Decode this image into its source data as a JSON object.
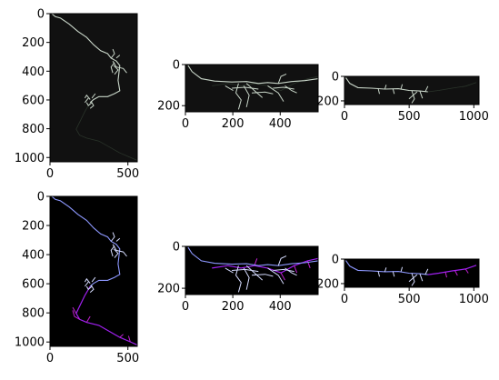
{
  "figure": {
    "background": "#ffffff",
    "panels": [
      {
        "id": "top-left",
        "image_background": "#111111",
        "trace_style": "gray",
        "x_ticks": [
          "0",
          "500"
        ],
        "y_ticks": [
          "0",
          "200",
          "400",
          "600",
          "800",
          "1000"
        ],
        "x_range": [
          0,
          560
        ],
        "y_range": [
          1030,
          0
        ]
      },
      {
        "id": "top-middle",
        "image_background": "#111111",
        "trace_style": "gray",
        "x_ticks": [
          "0",
          "200",
          "400"
        ],
        "y_ticks": [
          "0",
          "200"
        ],
        "x_range": [
          0,
          560
        ],
        "y_range": [
          230,
          0
        ]
      },
      {
        "id": "top-right",
        "image_background": "#111111",
        "trace_style": "gray",
        "x_ticks": [
          "0",
          "500",
          "1000"
        ],
        "y_ticks": [
          "0",
          "200"
        ],
        "x_range": [
          0,
          1040
        ],
        "y_range": [
          230,
          0
        ]
      },
      {
        "id": "bottom-left",
        "image_background": "#000000",
        "trace_style": "color",
        "x_ticks": [
          "0",
          "500"
        ],
        "y_ticks": [
          "0",
          "200",
          "400",
          "600",
          "800",
          "1000"
        ],
        "x_range": [
          0,
          560
        ],
        "y_range": [
          1030,
          0
        ]
      },
      {
        "id": "bottom-middle",
        "image_background": "#000000",
        "trace_style": "color",
        "x_ticks": [
          "0",
          "200",
          "400"
        ],
        "y_ticks": [
          "0",
          "200"
        ],
        "x_range": [
          0,
          560
        ],
        "y_range": [
          230,
          0
        ]
      },
      {
        "id": "bottom-right",
        "image_background": "#000000",
        "trace_style": "color",
        "x_ticks": [
          "0",
          "500",
          "1000"
        ],
        "y_ticks": [
          "0",
          "200"
        ],
        "x_range": [
          0,
          1040
        ],
        "y_range": [
          230,
          0
        ]
      }
    ],
    "colors": {
      "gray_trace": "#c9d6c9",
      "blue_trace": "#8d98ff",
      "light_trace": "#d6dcff",
      "purple_trace": "#a020f0",
      "magenta_trace": "#c020d0"
    }
  }
}
